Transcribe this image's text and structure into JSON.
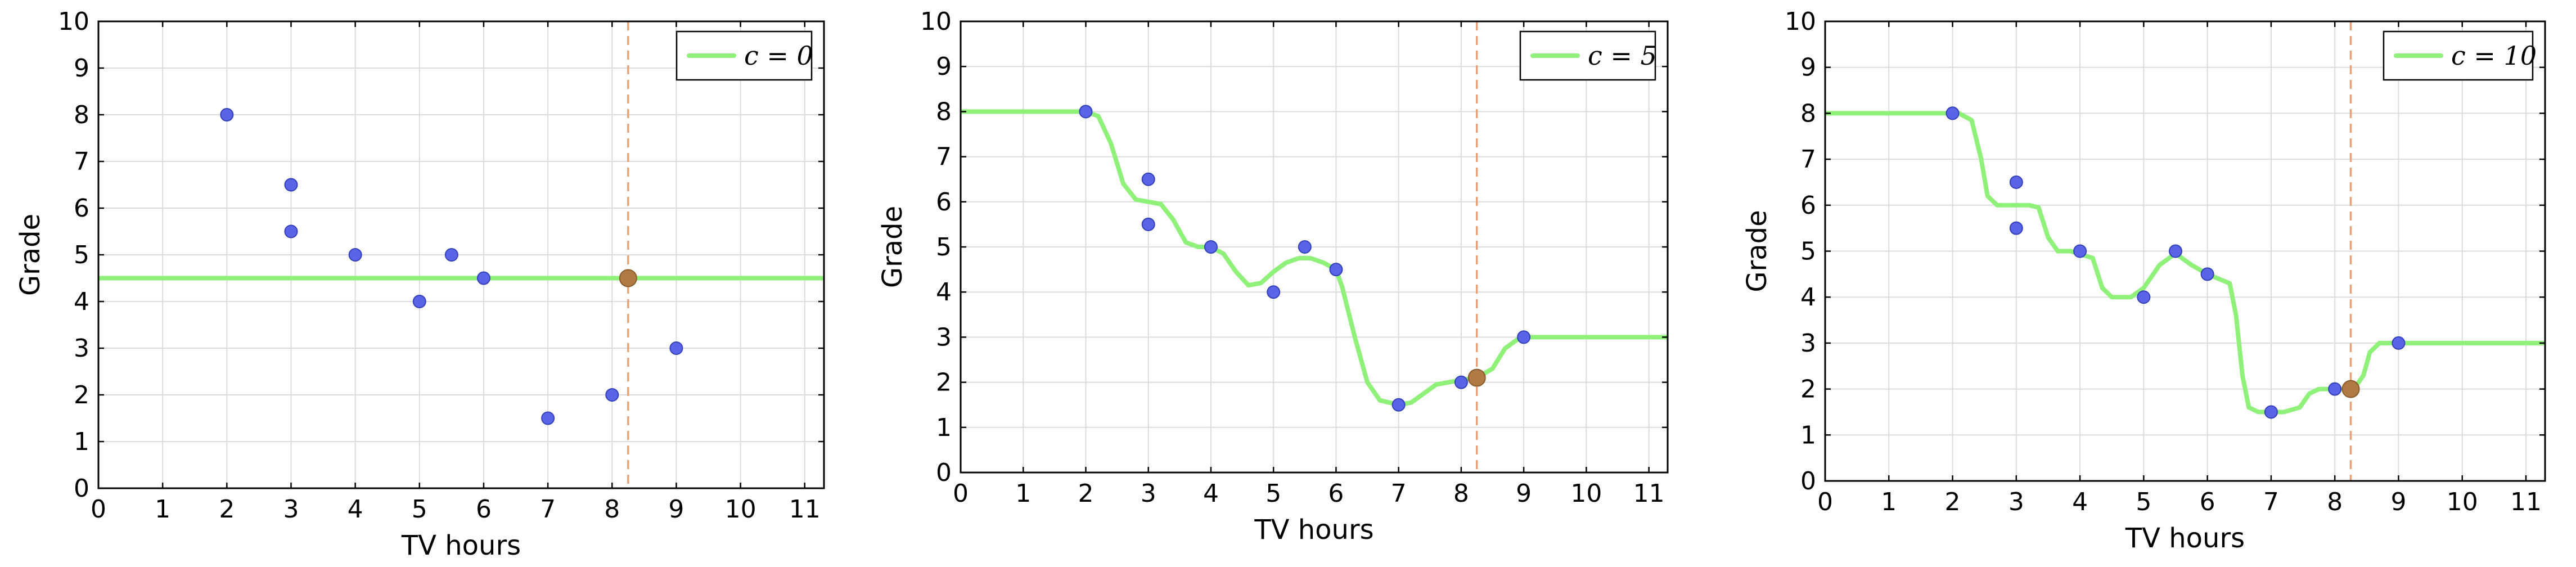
{
  "chart_data": [
    {
      "type": "line",
      "xlabel": "TV hours",
      "ylabel": "Grade",
      "xlim": [
        0,
        11.3
      ],
      "ylim": [
        0,
        10
      ],
      "xticks": [
        "0",
        "1",
        "2",
        "3",
        "4",
        "5",
        "6",
        "7",
        "8",
        "9",
        "10",
        "11"
      ],
      "yticks": [
        "0",
        "1",
        "2",
        "3",
        "4",
        "5",
        "6",
        "7",
        "8",
        "9",
        "10"
      ],
      "grid": true,
      "legend": {
        "position": "top-right",
        "label": "c = 0",
        "c": "0"
      },
      "points": [
        {
          "x": 2,
          "y": 8
        },
        {
          "x": 3,
          "y": 6.5
        },
        {
          "x": 3,
          "y": 5.5
        },
        {
          "x": 4,
          "y": 5
        },
        {
          "x": 5,
          "y": 4
        },
        {
          "x": 5.5,
          "y": 5
        },
        {
          "x": 6,
          "y": 4.5
        },
        {
          "x": 7,
          "y": 1.5
        },
        {
          "x": 8,
          "y": 2
        },
        {
          "x": 9,
          "y": 3
        }
      ],
      "query": {
        "x": 8.25,
        "y": 4.5
      },
      "curve": [
        [
          0,
          4.5
        ],
        [
          11.3,
          4.5
        ]
      ]
    },
    {
      "type": "line",
      "xlabel": "TV hours",
      "ylabel": "Grade",
      "xlim": [
        0,
        11.3
      ],
      "ylim": [
        0,
        10
      ],
      "xticks": [
        "0",
        "1",
        "2",
        "3",
        "4",
        "5",
        "6",
        "7",
        "8",
        "9",
        "10",
        "11"
      ],
      "yticks": [
        "0",
        "1",
        "2",
        "3",
        "4",
        "5",
        "6",
        "7",
        "8",
        "9",
        "10"
      ],
      "grid": true,
      "legend": {
        "position": "top-right",
        "label": "c = 5",
        "c": "5"
      },
      "points": [
        {
          "x": 2,
          "y": 8
        },
        {
          "x": 3,
          "y": 6.5
        },
        {
          "x": 3,
          "y": 5.5
        },
        {
          "x": 4,
          "y": 5
        },
        {
          "x": 5,
          "y": 4
        },
        {
          "x": 5.5,
          "y": 5
        },
        {
          "x": 6,
          "y": 4.5
        },
        {
          "x": 7,
          "y": 1.5
        },
        {
          "x": 8,
          "y": 2
        },
        {
          "x": 9,
          "y": 3
        }
      ],
      "query": {
        "x": 8.25,
        "y": 2.1
      },
      "curve": [
        [
          0,
          8
        ],
        [
          2,
          8
        ],
        [
          2.2,
          7.9
        ],
        [
          2.4,
          7.3
        ],
        [
          2.6,
          6.4
        ],
        [
          2.8,
          6.05
        ],
        [
          3,
          6
        ],
        [
          3.2,
          5.95
        ],
        [
          3.4,
          5.6
        ],
        [
          3.6,
          5.1
        ],
        [
          3.8,
          5.0
        ],
        [
          4,
          5
        ],
        [
          4.2,
          4.85
        ],
        [
          4.4,
          4.45
        ],
        [
          4.6,
          4.15
        ],
        [
          4.8,
          4.2
        ],
        [
          5,
          4.45
        ],
        [
          5.2,
          4.65
        ],
        [
          5.4,
          4.75
        ],
        [
          5.6,
          4.75
        ],
        [
          5.8,
          4.65
        ],
        [
          6,
          4.5
        ],
        [
          6.1,
          4.1
        ],
        [
          6.3,
          3.0
        ],
        [
          6.5,
          2.0
        ],
        [
          6.7,
          1.6
        ],
        [
          7,
          1.5
        ],
        [
          7.2,
          1.55
        ],
        [
          7.4,
          1.75
        ],
        [
          7.6,
          1.95
        ],
        [
          8,
          2.05
        ],
        [
          8.25,
          2.1
        ],
        [
          8.5,
          2.3
        ],
        [
          8.7,
          2.75
        ],
        [
          8.9,
          2.95
        ],
        [
          9.1,
          3.0
        ],
        [
          9.5,
          3
        ],
        [
          11.3,
          3
        ]
      ]
    },
    {
      "type": "line",
      "xlabel": "TV hours",
      "ylabel": "Grade",
      "xlim": [
        0,
        11.3
      ],
      "ylim": [
        0,
        10
      ],
      "xticks": [
        "0",
        "1",
        "2",
        "3",
        "4",
        "5",
        "6",
        "7",
        "8",
        "9",
        "10",
        "11"
      ],
      "yticks": [
        "0",
        "1",
        "2",
        "3",
        "4",
        "5",
        "6",
        "7",
        "8",
        "9",
        "10"
      ],
      "grid": true,
      "legend": {
        "position": "top-right",
        "label": "c = 10",
        "c": "10"
      },
      "points": [
        {
          "x": 2,
          "y": 8
        },
        {
          "x": 3,
          "y": 6.5
        },
        {
          "x": 3,
          "y": 5.5
        },
        {
          "x": 4,
          "y": 5
        },
        {
          "x": 5,
          "y": 4
        },
        {
          "x": 5.5,
          "y": 5
        },
        {
          "x": 6,
          "y": 4.5
        },
        {
          "x": 7,
          "y": 1.5
        },
        {
          "x": 8,
          "y": 2
        },
        {
          "x": 9,
          "y": 3
        }
      ],
      "query": {
        "x": 8.25,
        "y": 2.0
      },
      "curve": [
        [
          0,
          8
        ],
        [
          2.1,
          8
        ],
        [
          2.3,
          7.85
        ],
        [
          2.45,
          7.0
        ],
        [
          2.55,
          6.2
        ],
        [
          2.7,
          6.0
        ],
        [
          3.2,
          6.0
        ],
        [
          3.35,
          5.95
        ],
        [
          3.5,
          5.3
        ],
        [
          3.65,
          5.0
        ],
        [
          3.85,
          5.0
        ],
        [
          4.2,
          4.85
        ],
        [
          4.35,
          4.2
        ],
        [
          4.5,
          4.0
        ],
        [
          4.8,
          4.0
        ],
        [
          5.0,
          4.2
        ],
        [
          5.25,
          4.7
        ],
        [
          5.5,
          4.95
        ],
        [
          5.75,
          4.7
        ],
        [
          6.0,
          4.5
        ],
        [
          6.35,
          4.3
        ],
        [
          6.45,
          3.6
        ],
        [
          6.55,
          2.3
        ],
        [
          6.65,
          1.6
        ],
        [
          6.8,
          1.5
        ],
        [
          7.2,
          1.5
        ],
        [
          7.45,
          1.6
        ],
        [
          7.6,
          1.9
        ],
        [
          7.75,
          2.0
        ],
        [
          8.0,
          2.0
        ],
        [
          8.3,
          2.0
        ],
        [
          8.45,
          2.3
        ],
        [
          8.55,
          2.8
        ],
        [
          8.7,
          3.0
        ],
        [
          11.3,
          3.0
        ]
      ]
    }
  ],
  "colors": {
    "curve": "#8ff07a",
    "point": "#5b63e6",
    "point_stroke": "#3340b8",
    "query": "#b07a45",
    "vline": "#e8a27a",
    "grid": "#dcdcdc",
    "frame": "#000000"
  }
}
